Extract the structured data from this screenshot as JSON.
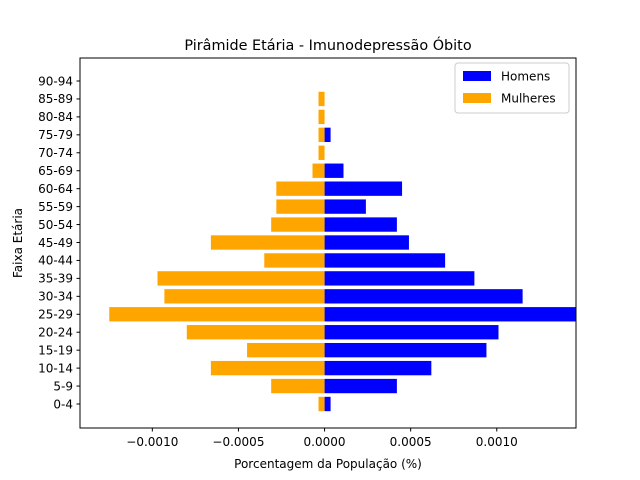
{
  "chart_data": {
    "type": "bar",
    "orientation": "horizontal",
    "title": "Pirâmide Etária - Imunodepressão Óbito",
    "xlabel": "Porcentagem da População (%)",
    "ylabel": "Faixa Etária",
    "xlim": [
      -0.00142,
      0.00146
    ],
    "x_ticks": [
      -0.001,
      -0.0005,
      0.0,
      0.0005,
      0.001
    ],
    "x_tick_labels": [
      "−0.0010",
      "−0.0005",
      "0.0000",
      "0.0005",
      "0.0010"
    ],
    "categories": [
      "0-4",
      "5-9",
      "10-14",
      "15-19",
      "20-24",
      "25-29",
      "30-34",
      "35-39",
      "40-44",
      "45-49",
      "50-54",
      "55-59",
      "60-64",
      "65-69",
      "70-74",
      "75-79",
      "80-84",
      "85-89",
      "90-94"
    ],
    "series": [
      {
        "name": "Homens",
        "color": "#0000ff",
        "values": [
          3.5e-05,
          0.00042,
          0.00062,
          0.00094,
          0.00101,
          0.00146,
          0.00115,
          0.00087,
          0.0007,
          0.00049,
          0.00042,
          0.00024,
          0.00045,
          0.00011,
          0.0,
          3.5e-05,
          0.0,
          0.0,
          0.0
        ]
      },
      {
        "name": "Mulheres",
        "color": "#ffa500",
        "values": [
          -3.5e-05,
          -0.00031,
          -0.00066,
          -0.00045,
          -0.0008,
          -0.00125,
          -0.00093,
          -0.00097,
          -0.00035,
          -0.00066,
          -0.00031,
          -0.00028,
          -0.00028,
          -7e-05,
          -3.5e-05,
          -3.5e-05,
          -3.5e-05,
          -3.5e-05,
          0.0
        ]
      }
    ],
    "legend": "top-right",
    "grid": false
  }
}
